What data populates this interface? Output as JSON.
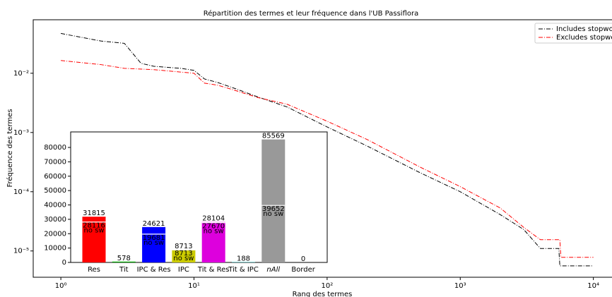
{
  "chart_data": [
    {
      "type": "line",
      "title": "Répartition des termes et leur fréquence dans l'UB Passiflora",
      "x_label": "Rang des termes",
      "y_label": "Fréquence des termes",
      "log_x": true,
      "log_y": true,
      "legend": "upper right",
      "xlim": [
        0.62,
        13800
      ],
      "ylim": [
        3.6e-06,
        0.08
      ],
      "xticks": [
        {
          "value": 1,
          "label": "10⁰"
        },
        {
          "value": 10,
          "label": "10¹"
        },
        {
          "value": 100,
          "label": "10²"
        },
        {
          "value": 1000,
          "label": "10³"
        },
        {
          "value": 10000,
          "label": "10⁴"
        }
      ],
      "yticks": [
        {
          "value": 1e-05,
          "label": "10⁻⁵"
        },
        {
          "value": 0.0001,
          "label": "10⁻⁴"
        },
        {
          "value": 0.001,
          "label": "10⁻³"
        },
        {
          "value": 0.01,
          "label": "10⁻²"
        }
      ],
      "series": [
        {
          "name": "Includes stopwords",
          "color": "#000000",
          "x": [
            1,
            2,
            3,
            4,
            5,
            8,
            10,
            12,
            15,
            20,
            30,
            50,
            100,
            200,
            500,
            1000,
            2000,
            3000,
            4000,
            5500,
            5600,
            10000
          ],
          "values": [
            0.047,
            0.035,
            0.032,
            0.0147,
            0.0131,
            0.0121,
            0.0112,
            0.008,
            0.007,
            0.0056,
            0.004,
            0.0027,
            0.00124,
            0.00059,
            0.000209,
            0.0001,
            4.1e-05,
            2.3e-05,
            1.1e-05,
            1.1e-05,
            5.6e-06,
            5.6e-06
          ]
        },
        {
          "name": "Excludes stopwords",
          "color": "#ff0000",
          "x": [
            1,
            2,
            3,
            5,
            10,
            12,
            15,
            20,
            30,
            50,
            100,
            200,
            500,
            1000,
            2000,
            3000,
            4000,
            5600,
            5700,
            10000
          ],
          "values": [
            0.0164,
            0.014,
            0.0121,
            0.0115,
            0.01,
            0.0068,
            0.0063,
            0.0052,
            0.0039,
            0.003,
            0.00155,
            0.00076,
            0.00026,
            0.000122,
            5.3e-05,
            2.5e-05,
            1.55e-05,
            1.55e-05,
            7.8e-06,
            7.8e-06
          ]
        }
      ]
    },
    {
      "type": "bar",
      "categories": [
        "Res",
        "Tit",
        "IPC & Res",
        "IPC",
        "Tit & Res",
        "Tit & IPC",
        "nAll",
        "Border"
      ],
      "values": [
        31815,
        578,
        24621,
        8713,
        28104,
        188,
        85569,
        0
      ],
      "nosw_values": [
        28116,
        null,
        19681,
        8713,
        27670,
        null,
        39652,
        null
      ],
      "nosw_label": "no sw",
      "colors": [
        "#ff0000",
        "#00aa00",
        "#0000ff",
        "#cccc00",
        "#dd00dd",
        "#00cccc",
        "#999999",
        "#000000"
      ],
      "ylim": [
        0,
        90800
      ],
      "yticks": [
        0,
        10000,
        20000,
        30000,
        40000,
        50000,
        60000,
        70000,
        80000
      ]
    }
  ]
}
